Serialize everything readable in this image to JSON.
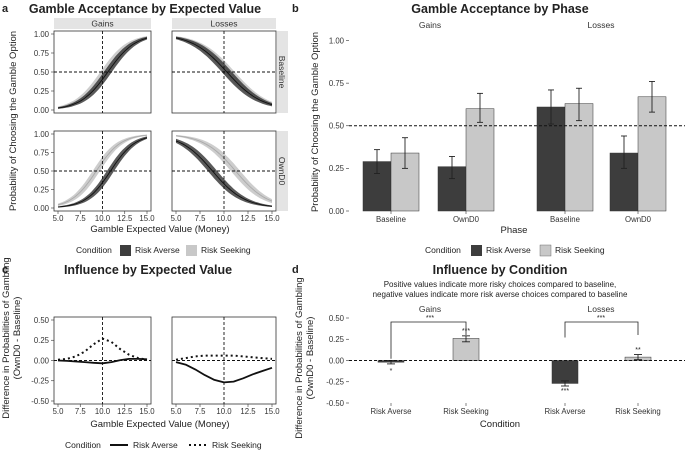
{
  "colors": {
    "risk_averse": "#3d3d3d",
    "risk_seeking": "#c8c8c8",
    "strip_bg": "#e4e4e4"
  },
  "panel_a": {
    "letter": "a",
    "title": "Gamble Acceptance by Expected Value",
    "col_strips": [
      "Gains",
      "Losses"
    ],
    "row_strips": [
      "Baseline",
      "OwnD0"
    ],
    "ylabel": "Probability of Choosing the Gamble Option",
    "xlabel": "Gamble Expected Value (Money)",
    "legend": {
      "title": "Condition",
      "items": [
        "Risk Averse",
        "Risk Seeking"
      ]
    }
  },
  "panel_b": {
    "letter": "b",
    "title": "Gamble Acceptance by Phase",
    "col_strips": [
      "Gains",
      "Losses"
    ],
    "ylabel": "Probability of Choosing the Gamble Option",
    "xlabel": "Phase",
    "legend": {
      "title": "Condition",
      "items": [
        "Risk Averse",
        "Risk Seeking"
      ]
    }
  },
  "panel_c": {
    "letter": "c",
    "title": "Influence by Expected Value",
    "ylabel_line1": "Difference in Probabilities of Gambling",
    "ylabel_line2": "(OwnD0 - Baseline)",
    "xlabel": "Gamble Expected Value (Money)",
    "legend": {
      "title": "Condition",
      "items": [
        "Risk Averse",
        "Risk Seeking"
      ]
    }
  },
  "panel_d": {
    "letter": "d",
    "title": "Influence by Condition",
    "subtitle_line1": "Positive values indicate more risky choices compared to baseline,",
    "subtitle_line2": "negative values indicate more risk averse choices compared to baseline",
    "group_labels": [
      "Gains",
      "Losses"
    ],
    "ylabel_line1": "Difference in Probabilities of Gambling",
    "ylabel_line2": "(OwnD0 - Baseline)",
    "xlabel": "Condition",
    "sig": {
      "gains_bracket": "***",
      "losses_bracket": "***",
      "gains_averse": "*",
      "gains_seeking": "***",
      "losses_averse": "***",
      "losses_seeking": "**"
    }
  },
  "chart_data": [
    {
      "id": "a",
      "type": "area",
      "title": "Gamble Acceptance by Expected Value",
      "xlabel": "Gamble Expected Value (Money)",
      "ylabel": "Probability of Choosing the Gamble Option",
      "xlim": [
        5,
        15
      ],
      "ylim": [
        0,
        1
      ],
      "xticks": [
        5.0,
        7.5,
        10.0,
        12.5,
        15.0
      ],
      "yticks": [
        0.0,
        0.25,
        0.5,
        0.75,
        1.0
      ],
      "x_tick_labels": [
        "5.0",
        "7.5",
        "10.0",
        "12.5",
        "15.0"
      ],
      "y_tick_labels": [
        "0.00",
        "0.25",
        "0.50",
        "0.75",
        "1.00"
      ],
      "reference_lines": {
        "x": 10,
        "y": 0.5
      },
      "facets": [
        {
          "row": "Baseline",
          "col": "Gains",
          "series": [
            {
              "name": "Risk Averse",
              "mid": 10.6,
              "slope": 0.65,
              "band": 0.07
            },
            {
              "name": "Risk Seeking",
              "mid": 10.2,
              "slope": 0.65,
              "band": 0.07
            }
          ]
        },
        {
          "row": "Baseline",
          "col": "Losses",
          "series": [
            {
              "name": "Risk Averse",
              "mid": 10.3,
              "slope": -0.55,
              "band": 0.07
            },
            {
              "name": "Risk Seeking",
              "mid": 10.6,
              "slope": -0.55,
              "band": 0.07
            }
          ]
        },
        {
          "row": "OwnD0",
          "col": "Gains",
          "series": [
            {
              "name": "Risk Averse",
              "mid": 10.9,
              "slope": 0.72,
              "band": 0.07
            },
            {
              "name": "Risk Seeking",
              "mid": 9.3,
              "slope": 0.72,
              "band": 0.07
            }
          ]
        },
        {
          "row": "OwnD0",
          "col": "Losses",
          "series": [
            {
              "name": "Risk Averse",
              "mid": 8.8,
              "slope": -0.6,
              "band": 0.07
            },
            {
              "name": "Risk Seeking",
              "mid": 11.2,
              "slope": -0.6,
              "band": 0.07
            }
          ]
        }
      ]
    },
    {
      "id": "b",
      "type": "bar",
      "title": "Gamble Acceptance by Phase",
      "xlabel": "Phase",
      "ylabel": "Probability of Choosing the Gamble Option",
      "ylim": [
        0,
        1.05
      ],
      "yticks": [
        0.0,
        0.25,
        0.5,
        0.75,
        1.0
      ],
      "y_tick_labels": [
        "0.00",
        "0.25",
        "0.50",
        "0.75",
        "1.00"
      ],
      "reference_lines": {
        "y": 0.5
      },
      "facets": [
        {
          "col": "Gains",
          "categories": [
            "Baseline",
            "OwnD0"
          ],
          "series": [
            {
              "name": "Risk Averse",
              "values": [
                0.29,
                0.26
              ],
              "err_low": [
                0.22,
                0.19
              ],
              "err_high": [
                0.36,
                0.32
              ]
            },
            {
              "name": "Risk Seeking",
              "values": [
                0.34,
                0.6
              ],
              "err_low": [
                0.25,
                0.52
              ],
              "err_high": [
                0.43,
                0.69
              ]
            }
          ]
        },
        {
          "col": "Losses",
          "categories": [
            "Baseline",
            "OwnD0"
          ],
          "series": [
            {
              "name": "Risk Averse",
              "values": [
                0.61,
                0.34
              ],
              "err_low": [
                0.51,
                0.25
              ],
              "err_high": [
                0.71,
                0.44
              ]
            },
            {
              "name": "Risk Seeking",
              "values": [
                0.63,
                0.67
              ],
              "err_low": [
                0.53,
                0.58
              ],
              "err_high": [
                0.72,
                0.76
              ]
            }
          ]
        }
      ]
    },
    {
      "id": "c",
      "type": "line",
      "title": "Influence by Expected Value",
      "xlabel": "Gamble Expected Value (Money)",
      "ylabel": "Difference in Probabilities of Gambling (OwnD0 - Baseline)",
      "xlim": [
        5,
        15
      ],
      "ylim": [
        -0.5,
        0.5
      ],
      "xticks": [
        5.0,
        7.5,
        10.0,
        12.5,
        15.0
      ],
      "yticks": [
        -0.5,
        -0.25,
        0.0,
        0.25,
        0.5
      ],
      "x_tick_labels": [
        "5.0",
        "7.5",
        "10.0",
        "12.5",
        "15.0"
      ],
      "y_tick_labels": [
        "-0.50",
        "-0.25",
        "0.00",
        "0.25",
        "0.50"
      ],
      "reference_lines": {
        "x": 10,
        "y": 0
      },
      "facets": [
        {
          "col": "Gains",
          "series": [
            {
              "name": "Risk Averse",
              "x": [
                5,
                6,
                7,
                8,
                9,
                10,
                11,
                12,
                13,
                14,
                15
              ],
              "y": [
                0,
                -0.005,
                -0.012,
                -0.02,
                -0.028,
                -0.035,
                -0.02,
                0.005,
                0.02,
                0.02,
                0.015
              ]
            },
            {
              "name": "Risk Seeking",
              "x": [
                5,
                6,
                7,
                8,
                9,
                10,
                11,
                12,
                13,
                14,
                15
              ],
              "y": [
                0.01,
                0.02,
                0.05,
                0.11,
                0.2,
                0.27,
                0.23,
                0.14,
                0.07,
                0.03,
                0.01
              ]
            }
          ]
        },
        {
          "col": "Losses",
          "series": [
            {
              "name": "Risk Averse",
              "x": [
                5,
                6,
                7,
                8,
                9,
                10,
                11,
                12,
                13,
                14,
                15
              ],
              "y": [
                -0.02,
                -0.05,
                -0.11,
                -0.18,
                -0.24,
                -0.27,
                -0.26,
                -0.22,
                -0.17,
                -0.13,
                -0.09
              ]
            },
            {
              "name": "Risk Seeking",
              "x": [
                5,
                6,
                7,
                8,
                9,
                10,
                11,
                12,
                13,
                14,
                15
              ],
              "y": [
                0.01,
                0.03,
                0.05,
                0.06,
                0.06,
                0.06,
                0.06,
                0.05,
                0.04,
                0.03,
                0.02
              ]
            }
          ]
        }
      ]
    },
    {
      "id": "d",
      "type": "bar",
      "title": "Influence by Condition",
      "xlabel": "Condition",
      "ylabel": "Difference in Probabilities of Gambling (OwnD0 - Baseline)",
      "ylim": [
        -0.5,
        0.5
      ],
      "yticks": [
        -0.5,
        -0.25,
        0.0,
        0.25,
        0.5
      ],
      "y_tick_labels": [
        "-0.50",
        "-0.25",
        "0.00",
        "0.25",
        "0.50"
      ],
      "reference_lines": {
        "y": 0
      },
      "groups": [
        {
          "name": "Gains",
          "categories": [
            "Risk Averse",
            "Risk Seeking"
          ],
          "values": [
            -0.02,
            0.26
          ],
          "err_low": [
            -0.04,
            0.22
          ],
          "err_high": [
            0.0,
            0.29
          ]
        },
        {
          "name": "Losses",
          "categories": [
            "Risk Averse",
            "Risk Seeking"
          ],
          "values": [
            -0.27,
            0.04
          ],
          "err_low": [
            -0.3,
            0.01
          ],
          "err_high": [
            -0.24,
            0.07
          ]
        }
      ]
    }
  ]
}
